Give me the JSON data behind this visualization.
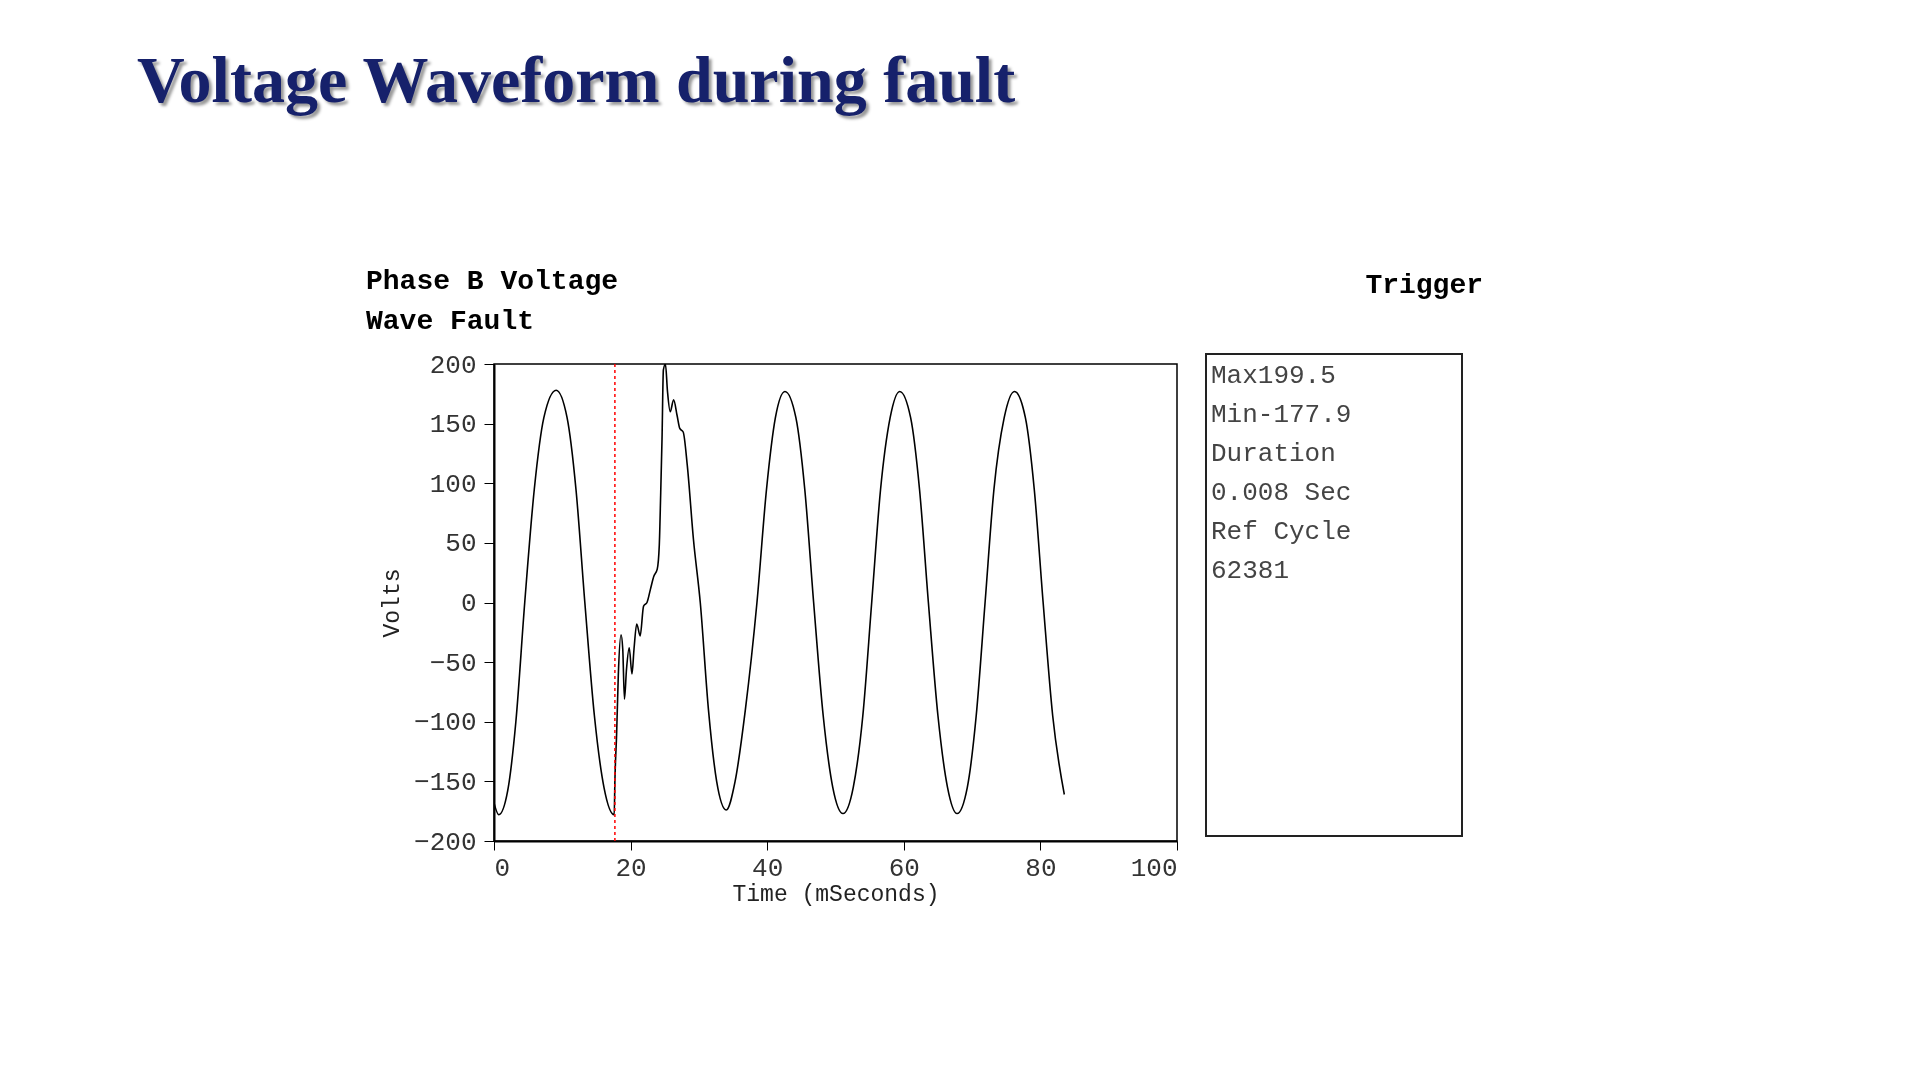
{
  "chart_data": [
    {
      "type": "line",
      "title": "Voltage Waveform during fault",
      "subtitle": "Phase B Voltage Wave Fault",
      "xlabel": "Time (mSeconds)",
      "ylabel": "Volts",
      "x": [
        0,
        0.7,
        2,
        3.2,
        4.5,
        5.9,
        7.3,
        9.1,
        10.7,
        12,
        13.3,
        14.7,
        16.1,
        17.6,
        17.7,
        17.96,
        18.2,
        18.6,
        18.85,
        19.1,
        19.4,
        19.8,
        20.2,
        20.5,
        20.9,
        21.4,
        21.9,
        22.4,
        22.9,
        23.4,
        23.9,
        24.2,
        24.4,
        24.6,
        24.8,
        25.1,
        25.4,
        25.8,
        26.3,
        26.8,
        27.2,
        27.7,
        28.3,
        29.2,
        30.2,
        31.4,
        32.6,
        34,
        35.3,
        36.8,
        38.5,
        39.9,
        41.2,
        42.6,
        44.2,
        45.5,
        46.8,
        48.2,
        49.6,
        51.1,
        52.6,
        54,
        55.3,
        56.6,
        58,
        59.4,
        61,
        62.3,
        63.6,
        65,
        66.4,
        67.8,
        69.3,
        70.6,
        71.9,
        73.2,
        74.7,
        76.2,
        77.8,
        79.1,
        80.4,
        81.8,
        83.5
      ],
      "series": [
        {
          "color": "#000000",
          "values": [
            -168,
            -178,
            -158,
            -100,
            0,
            95,
            155,
            178,
            155,
            95,
            0,
            -95,
            -155,
            -178,
            -150,
            -109,
            -61,
            -27,
            -39,
            -81,
            -56,
            -38,
            -60,
            -39,
            -18,
            -28,
            -3,
            0,
            11,
            22,
            28,
            48,
            90,
            137,
            195,
            200,
            177,
            160,
            170,
            157,
            146,
            143,
            115,
            53,
            0,
            -90,
            -150,
            -174,
            -150,
            -90,
            0,
            95,
            155,
            177,
            155,
            95,
            0,
            -95,
            -155,
            -177,
            -155,
            -95,
            0,
            95,
            155,
            177,
            155,
            95,
            0,
            -95,
            -155,
            -177,
            -155,
            -95,
            0,
            95,
            155,
            177,
            155,
            95,
            0,
            -95,
            -161
          ]
        }
      ],
      "xlim": [
        0,
        100
      ],
      "xticks": [
        0,
        20,
        40,
        60,
        80,
        100
      ],
      "ylim": [
        -200,
        200
      ],
      "yticks": [
        -200,
        -150,
        -100,
        -50,
        0,
        50,
        100,
        150,
        200
      ],
      "ref_lines": [
        {
          "axis": "x",
          "value": 17.7,
          "color": "#ff0000",
          "line_style": "dotted"
        }
      ]
    },
    {
      "type": "other",
      "title": "Trigger",
      "annotations": [
        "Max199.5",
        "Min-177.9",
        "Duration",
        "0.008 Sec",
        "Ref Cycle",
        "62381"
      ]
    }
  ]
}
